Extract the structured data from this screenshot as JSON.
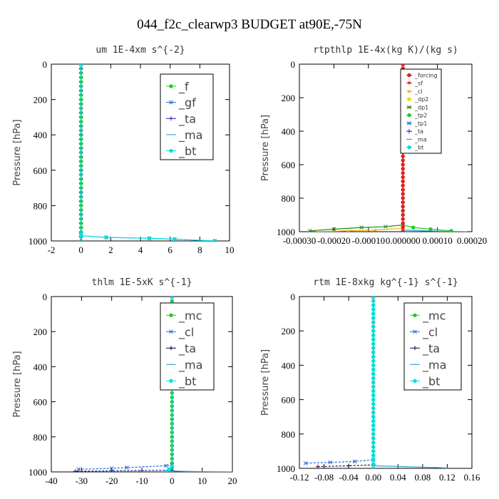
{
  "figure": {
    "title": "044_f2c_clearwp3  BUDGET at90E,-75N"
  },
  "chart_data": [
    {
      "type": "line",
      "title": "um   1E-4xm s^{-2}",
      "xlabel": "",
      "ylabel": "Pressure [hPa]",
      "xlim": [
        -2,
        10
      ],
      "ylim": [
        1000,
        0
      ],
      "xticks": [
        "-2",
        "0",
        "2",
        "4",
        "6",
        "8",
        "10"
      ],
      "xtick_values": [
        -2,
        0,
        2,
        4,
        6,
        8,
        10
      ],
      "yticks": [
        "0",
        "200",
        "400",
        "600",
        "800",
        "1000"
      ],
      "ytick_values": [
        0,
        200,
        400,
        600,
        800,
        1000
      ],
      "legend": {
        "placement": "top-right",
        "size": "big",
        "entries": [
          {
            "label": "_f",
            "color": "#22cc22",
            "marker": "o"
          },
          {
            "label": "_gf",
            "color": "#1a6bd6",
            "marker": "x"
          },
          {
            "label": "_ta",
            "color": "#2222cc",
            "marker": "+"
          },
          {
            "label": "_ma",
            "color": "#2aa4d6",
            "marker": "-"
          },
          {
            "label": "_bt",
            "color": "#00e0e0",
            "marker": "o"
          }
        ]
      },
      "series": [
        {
          "label": "_f",
          "color": "#22cc22",
          "marker": "o",
          "dash": "",
          "points": [
            [
              0,
              0
            ],
            [
              0,
              1000
            ]
          ]
        },
        {
          "label": "_gf",
          "color": "#1a6bd6",
          "marker": "x",
          "dash": "3,2",
          "points": [
            [
              0,
              0
            ],
            [
              0,
              960
            ],
            [
              0,
              970
            ],
            [
              1.7,
              980
            ],
            [
              4.6,
              985
            ],
            [
              6.3,
              990
            ],
            [
              9.0,
              1000
            ]
          ]
        },
        {
          "label": "_ta",
          "color": "#2222cc",
          "marker": "+",
          "dash": "3,2",
          "points": [
            [
              0,
              0
            ],
            [
              0,
              1000
            ]
          ]
        },
        {
          "label": "_ma",
          "color": "#2aa4d6",
          "marker": "-",
          "dash": "",
          "points": [
            [
              0,
              0
            ],
            [
              0,
              1000
            ]
          ]
        },
        {
          "label": "_bt",
          "color": "#00e0e0",
          "marker": "o",
          "dash": "",
          "points": [
            [
              0,
              0
            ],
            [
              0,
              960
            ],
            [
              0,
              970
            ],
            [
              1.7,
              980
            ],
            [
              4.6,
              985
            ],
            [
              6.3,
              990
            ],
            [
              9.0,
              1000
            ]
          ]
        }
      ]
    },
    {
      "type": "line",
      "title": "rtpthlp  1E-4x(kg K)/(kg s)",
      "xlabel": "",
      "ylabel": "Pressure [hPa]",
      "xlim": [
        -0.0003,
        0.0002
      ],
      "ylim": [
        1000,
        0
      ],
      "xticks": [
        "-0.00030",
        "-0.00020",
        "-0.00010",
        "0.000000",
        "0.00010",
        "0.00020"
      ],
      "xtick_values": [
        -0.0003,
        -0.0002,
        -0.0001,
        0,
        0.0001,
        0.0002
      ],
      "yticks": [
        "0",
        "200",
        "400",
        "600",
        "800",
        "1000"
      ],
      "ytick_values": [
        0,
        200,
        400,
        600,
        800,
        1000
      ],
      "legend": {
        "placement": "top-right",
        "size": "small",
        "entries": [
          {
            "label": "_forcing",
            "color": "#e02020",
            "marker": "o"
          },
          {
            "label": "_sf",
            "color": "#e02020",
            "marker": "v"
          },
          {
            "label": "_cl",
            "color": "#f0b000",
            "marker": "^"
          },
          {
            "label": "_dp2",
            "color": "#e0e000",
            "marker": "o"
          },
          {
            "label": "_dp1",
            "color": "#1a8a1a",
            "marker": "x"
          },
          {
            "label": "_tp2",
            "color": "#22cc22",
            "marker": "o"
          },
          {
            "label": "_tp1",
            "color": "#1a6bd6",
            "marker": "x"
          },
          {
            "label": "_ta",
            "color": "#2222cc",
            "marker": "+"
          },
          {
            "label": "_ma",
            "color": "#2aa4d6",
            "marker": "-"
          },
          {
            "label": "_bt",
            "color": "#00e0e0",
            "marker": "o"
          }
        ]
      },
      "series": [
        {
          "label": "_dp1",
          "color": "#1a8a1a",
          "marker": "x",
          "dash": "",
          "points": [
            [
              0,
              0
            ],
            [
              0,
              960
            ],
            [
              -5e-05,
              970
            ],
            [
              -0.00012,
              975
            ],
            [
              -0.0002,
              985
            ],
            [
              -0.00027,
              995
            ]
          ]
        },
        {
          "label": "_tp2",
          "color": "#22cc22",
          "marker": "o",
          "dash": "",
          "points": [
            [
              0,
              0
            ],
            [
              0,
              960
            ],
            [
              3e-05,
              975
            ],
            [
              8e-05,
              985
            ],
            [
              0.00014,
              995
            ]
          ]
        },
        {
          "label": "_cl",
          "color": "#f0b000",
          "marker": "^",
          "dash": "",
          "points": [
            [
              0,
              980
            ],
            [
              -8e-05,
              990
            ],
            [
              -0.00016,
              995
            ],
            [
              -0.00025,
              1000
            ]
          ]
        },
        {
          "label": "_ma",
          "color": "#2aa4d6",
          "marker": "-",
          "dash": "",
          "points": [
            [
              0,
              990
            ],
            [
              6e-05,
              995
            ],
            [
              0.00012,
              998
            ],
            [
              0.00018,
              1000
            ]
          ]
        },
        {
          "label": "_forcing",
          "color": "#e02020",
          "marker": "o",
          "dash": "",
          "points": [
            [
              0,
              0
            ],
            [
              0,
              1000
            ]
          ]
        },
        {
          "label": "_sf",
          "color": "#e02020",
          "marker": "v",
          "dash": "",
          "points": [
            [
              0,
              0
            ],
            [
              0,
              1000
            ]
          ]
        }
      ]
    },
    {
      "type": "line",
      "title": "thlm  1E-5xK s^{-1}",
      "xlabel": "",
      "ylabel": "Pressure [hPa]",
      "xlim": [
        -40,
        20
      ],
      "ylim": [
        1000,
        0
      ],
      "xticks": [
        "-40",
        "-30",
        "-20",
        "-10",
        "0",
        "10",
        "20"
      ],
      "xtick_values": [
        -40,
        -30,
        -20,
        -10,
        0,
        10,
        20
      ],
      "yticks": [
        "0",
        "200",
        "400",
        "600",
        "800",
        "1000"
      ],
      "ytick_values": [
        0,
        200,
        400,
        600,
        800,
        1000
      ],
      "legend": {
        "placement": "top-right",
        "size": "big",
        "entries": [
          {
            "label": "_mc",
            "color": "#22cc22",
            "marker": "o"
          },
          {
            "label": "_cl",
            "color": "#1a6bd6",
            "marker": "x"
          },
          {
            "label": "_ta",
            "color": "#000066",
            "marker": "+"
          },
          {
            "label": "_ma",
            "color": "#2aa4d6",
            "marker": "-"
          },
          {
            "label": "_bt",
            "color": "#00e0e0",
            "marker": "o"
          }
        ]
      },
      "series": [
        {
          "label": "_mc",
          "color": "#22cc22",
          "marker": "o",
          "dash": "",
          "points": [
            [
              0,
              0
            ],
            [
              0,
              1000
            ]
          ]
        },
        {
          "label": "_cl",
          "color": "#1a6bd6",
          "marker": "x",
          "dash": "3,2",
          "points": [
            [
              0,
              0
            ],
            [
              0,
              960
            ],
            [
              -2,
              965
            ],
            [
              -15,
              975
            ],
            [
              -20,
              980
            ],
            [
              -31,
              985
            ]
          ]
        },
        {
          "label": "_ta",
          "color": "#2a2a9a",
          "marker": "+",
          "dash": "3,2",
          "points": [
            [
              0,
              990
            ],
            [
              -10,
              992
            ],
            [
              -20,
              994
            ],
            [
              -32,
              996
            ]
          ]
        },
        {
          "label": "_ma",
          "color": "#2aa4d6",
          "marker": "-",
          "dash": "",
          "points": [
            [
              0,
              995
            ],
            [
              5,
              997
            ],
            [
              12,
              999
            ],
            [
              20,
              1000
            ]
          ]
        },
        {
          "label": "_bt",
          "color": "#00e0e0",
          "marker": "o",
          "dash": "",
          "points": [
            [
              0,
              0
            ],
            [
              0,
              970
            ],
            [
              -1,
              985
            ],
            [
              -2,
              1000
            ]
          ]
        }
      ]
    },
    {
      "type": "line",
      "title": "rtm  1E-8xkg kg^{-1} s^{-1}",
      "xlabel": "",
      "ylabel": "Pressure [hPa]",
      "xlim": [
        -0.12,
        0.16
      ],
      "ylim": [
        1000,
        0
      ],
      "xticks": [
        "-0.12",
        "-0.08",
        "-0.04",
        "0.00",
        "0.04",
        "0.08",
        "0.12",
        "0.16"
      ],
      "xtick_values": [
        -0.12,
        -0.08,
        -0.04,
        0,
        0.04,
        0.08,
        0.12,
        0.16
      ],
      "yticks": [
        "0",
        "200",
        "400",
        "600",
        "800",
        "1000"
      ],
      "ytick_values": [
        0,
        200,
        400,
        600,
        800,
        1000
      ],
      "legend": {
        "placement": "top-right",
        "size": "big",
        "entries": [
          {
            "label": "_mc",
            "color": "#22cc22",
            "marker": "o"
          },
          {
            "label": "_cl",
            "color": "#1a6bd6",
            "marker": "x"
          },
          {
            "label": "_ta",
            "color": "#2a0a4a",
            "marker": "+"
          },
          {
            "label": "_ma",
            "color": "#2aa4d6",
            "marker": "-"
          },
          {
            "label": "_bt",
            "color": "#00e0e0",
            "marker": "o"
          }
        ]
      },
      "series": [
        {
          "label": "_mc",
          "color": "#22cc22",
          "marker": "o",
          "dash": "",
          "points": [
            [
              0,
              0
            ],
            [
              0,
              1000
            ]
          ]
        },
        {
          "label": "_cl",
          "color": "#1a6bd6",
          "marker": "x",
          "dash": "3,2",
          "points": [
            [
              0,
              0
            ],
            [
              0,
              950
            ],
            [
              -0.03,
              960
            ],
            [
              -0.07,
              965
            ],
            [
              -0.11,
              970
            ]
          ]
        },
        {
          "label": "_ta",
          "color": "#2a0a4a",
          "marker": "+",
          "dash": "3,2",
          "points": [
            [
              0,
              980
            ],
            [
              -0.04,
              985
            ],
            [
              -0.09,
              990
            ]
          ]
        },
        {
          "label": "_ma",
          "color": "#2aa4d6",
          "marker": "-",
          "dash": "",
          "points": [
            [
              0,
              985
            ],
            [
              0.05,
              990
            ],
            [
              0.1,
              995
            ],
            [
              0.12,
              998
            ]
          ]
        },
        {
          "label": "_bt",
          "color": "#00e0e0",
          "marker": "o",
          "dash": "",
          "points": [
            [
              0,
              0
            ],
            [
              0,
              1000
            ]
          ]
        }
      ]
    }
  ]
}
